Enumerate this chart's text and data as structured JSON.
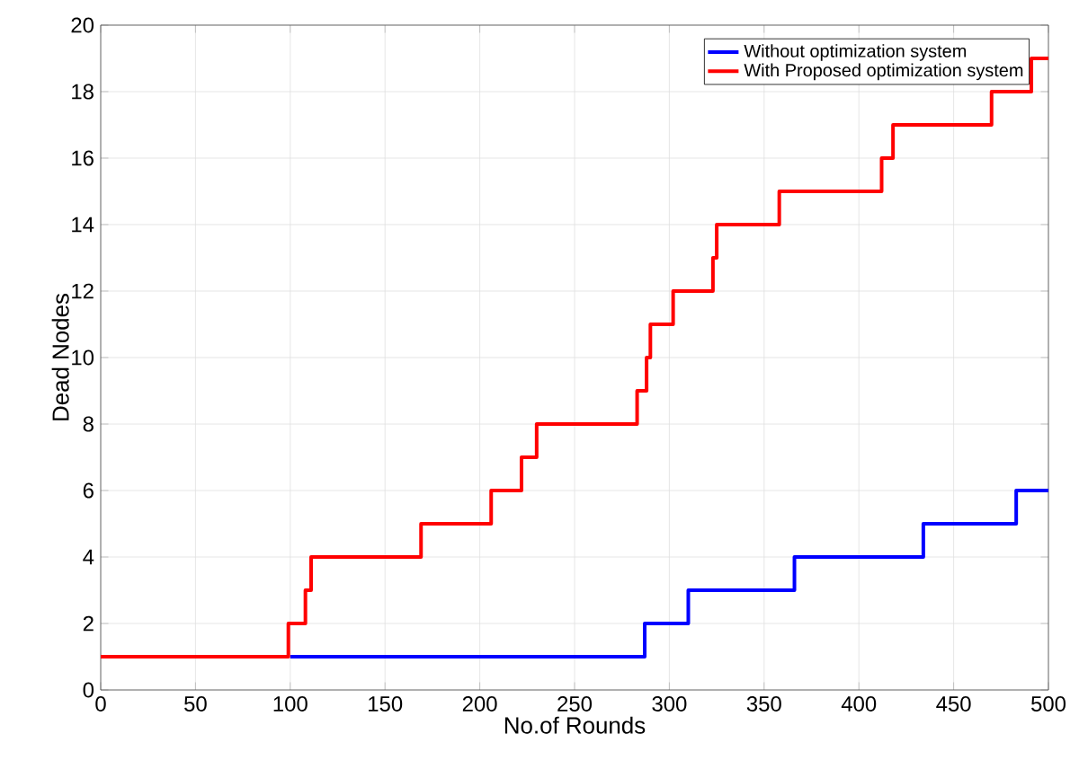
{
  "chart_data": {
    "type": "step",
    "xlabel": "No.of Rounds",
    "ylabel": "Dead Nodes",
    "x": [
      0,
      99,
      108,
      111,
      169,
      206,
      222,
      230,
      283,
      288,
      290,
      302,
      323,
      325,
      358,
      412,
      418,
      470,
      491,
      500
    ],
    "series": [
      {
        "name": "Without optimization system",
        "color": "#0000ff",
        "x": [
          100,
          287,
          310,
          366,
          434,
          483,
          500
        ],
        "values": [
          1,
          2,
          3,
          4,
          5,
          6,
          6
        ]
      },
      {
        "name": "With Proposed optimization system",
        "color": "#ff0000",
        "values": [
          1,
          2,
          3,
          4,
          5,
          6,
          7,
          8,
          9,
          10,
          11,
          12,
          13,
          14,
          15,
          16,
          17,
          18,
          19,
          19
        ]
      }
    ],
    "xlim": [
      0,
      500
    ],
    "ylim": [
      0,
      20
    ],
    "xticks": [
      0,
      50,
      100,
      150,
      200,
      250,
      300,
      350,
      400,
      450,
      500
    ],
    "yticks": [
      0,
      2,
      4,
      6,
      8,
      10,
      12,
      14,
      16,
      18,
      20
    ],
    "grid": true,
    "legend": "top right"
  }
}
